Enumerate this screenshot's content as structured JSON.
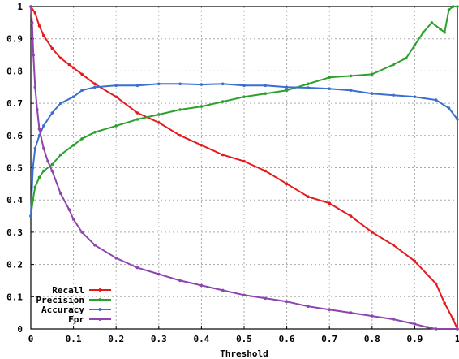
{
  "chart_data": {
    "type": "line",
    "title": "",
    "xlabel": "Threshold",
    "ylabel": "",
    "xlim": [
      0,
      1
    ],
    "ylim": [
      0,
      1
    ],
    "grid": true,
    "legend_position": "bottom-left",
    "x_ticks": [
      "0",
      "0.1",
      "0.2",
      "0.3",
      "0.4",
      "0.5",
      "0.6",
      "0.7",
      "0.8",
      "0.9",
      "1"
    ],
    "y_ticks": [
      "0",
      "0.1",
      "0.2",
      "0.3",
      "0.4",
      "0.5",
      "0.6",
      "0.7",
      "0.8",
      "0.9",
      "1"
    ],
    "series": [
      {
        "name": "Recall",
        "color": "#e41a1c",
        "x": [
          0,
          0.01,
          0.02,
          0.03,
          0.05,
          0.07,
          0.09,
          0.1,
          0.12,
          0.15,
          0.2,
          0.25,
          0.3,
          0.35,
          0.4,
          0.45,
          0.5,
          0.55,
          0.6,
          0.65,
          0.7,
          0.75,
          0.8,
          0.85,
          0.9,
          0.95,
          0.97,
          0.99,
          1.0
        ],
        "y": [
          1.0,
          0.98,
          0.94,
          0.91,
          0.87,
          0.84,
          0.82,
          0.81,
          0.79,
          0.76,
          0.72,
          0.67,
          0.64,
          0.6,
          0.57,
          0.54,
          0.52,
          0.49,
          0.45,
          0.41,
          0.39,
          0.35,
          0.3,
          0.26,
          0.21,
          0.14,
          0.08,
          0.03,
          0.0
        ]
      },
      {
        "name": "Precision",
        "color": "#2ca02c",
        "x": [
          0,
          0.005,
          0.01,
          0.02,
          0.03,
          0.05,
          0.07,
          0.1,
          0.12,
          0.15,
          0.2,
          0.25,
          0.3,
          0.35,
          0.4,
          0.45,
          0.5,
          0.55,
          0.6,
          0.65,
          0.7,
          0.75,
          0.8,
          0.85,
          0.88,
          0.9,
          0.92,
          0.94,
          0.96,
          0.97,
          0.98,
          0.99,
          1.0
        ],
        "y": [
          0.35,
          0.4,
          0.44,
          0.47,
          0.49,
          0.51,
          0.54,
          0.57,
          0.59,
          0.61,
          0.63,
          0.65,
          0.665,
          0.68,
          0.69,
          0.705,
          0.72,
          0.73,
          0.74,
          0.76,
          0.78,
          0.785,
          0.79,
          0.82,
          0.84,
          0.88,
          0.92,
          0.95,
          0.93,
          0.92,
          0.99,
          1.0,
          1.0
        ]
      },
      {
        "name": "Accuracy",
        "color": "#3a6fcf",
        "x": [
          0,
          0.005,
          0.01,
          0.02,
          0.03,
          0.05,
          0.07,
          0.1,
          0.12,
          0.15,
          0.2,
          0.25,
          0.3,
          0.35,
          0.4,
          0.45,
          0.5,
          0.55,
          0.6,
          0.65,
          0.7,
          0.75,
          0.8,
          0.85,
          0.9,
          0.95,
          0.98,
          1.0
        ],
        "y": [
          0.35,
          0.5,
          0.56,
          0.6,
          0.63,
          0.67,
          0.7,
          0.72,
          0.74,
          0.75,
          0.755,
          0.755,
          0.76,
          0.76,
          0.758,
          0.76,
          0.755,
          0.755,
          0.75,
          0.748,
          0.745,
          0.74,
          0.73,
          0.725,
          0.72,
          0.71,
          0.685,
          0.65
        ]
      },
      {
        "name": "Fpr",
        "color": "#8e44ad",
        "x": [
          0,
          0.003,
          0.006,
          0.01,
          0.015,
          0.02,
          0.03,
          0.04,
          0.05,
          0.07,
          0.09,
          0.1,
          0.12,
          0.15,
          0.2,
          0.25,
          0.3,
          0.35,
          0.4,
          0.45,
          0.5,
          0.55,
          0.6,
          0.65,
          0.7,
          0.75,
          0.8,
          0.85,
          0.9,
          0.93,
          0.95,
          1.0
        ],
        "y": [
          1.0,
          0.95,
          0.85,
          0.75,
          0.68,
          0.62,
          0.56,
          0.52,
          0.49,
          0.42,
          0.37,
          0.34,
          0.3,
          0.26,
          0.22,
          0.19,
          0.17,
          0.15,
          0.135,
          0.12,
          0.105,
          0.095,
          0.085,
          0.07,
          0.06,
          0.05,
          0.04,
          0.03,
          0.015,
          0.005,
          0.0,
          0.0
        ]
      }
    ]
  }
}
